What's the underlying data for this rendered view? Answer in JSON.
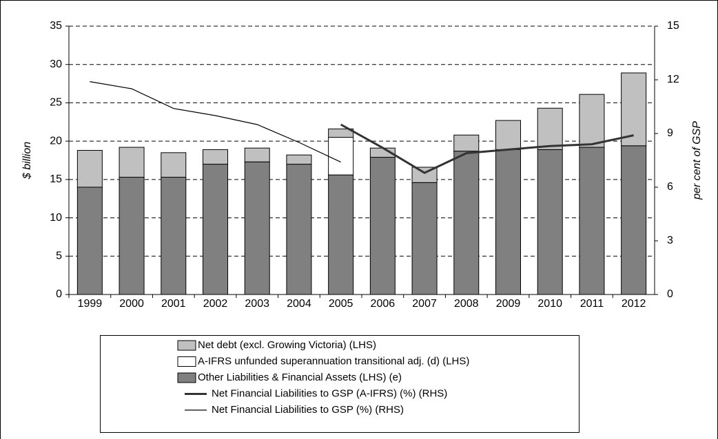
{
  "chart_data": {
    "type": "bar",
    "stacked": true,
    "y_label": "$ billion",
    "y2_label": "per cent of GSP",
    "categories": [
      "1999",
      "2000",
      "2001",
      "2002",
      "2003",
      "2004",
      "2005",
      "2006",
      "2007",
      "2008",
      "2009",
      "2010",
      "2011",
      "2012"
    ],
    "series": [
      {
        "name": "Net debt (excl. Growing Victoria) (LHS)",
        "color": "#c0c0c0",
        "values": [
          4.8,
          3.9,
          3.2,
          1.9,
          1.8,
          1.2,
          1.1,
          1.2,
          2.0,
          2.1,
          3.8,
          5.4,
          6.9,
          9.5
        ]
      },
      {
        "name": "A-IFRS unfunded superannuation transitional adj. (d) (LHS)",
        "color": "#ffffff",
        "values": [
          null,
          null,
          null,
          null,
          null,
          null,
          4.9,
          null,
          null,
          null,
          null,
          null,
          null,
          null
        ]
      },
      {
        "name": "Other Liabilities & Financial Assets (LHS) (e)",
        "color": "#808080",
        "values": [
          14.0,
          15.3,
          15.3,
          17.0,
          17.3,
          17.0,
          15.6,
          17.9,
          14.6,
          18.7,
          18.9,
          18.9,
          19.2,
          19.4
        ]
      },
      {
        "name": "Net Financial Liabilities to GSP (A-IFRS) (%) (RHS)",
        "type": "line",
        "axis": "y2",
        "color": "#333333",
        "width": 3,
        "values": [
          null,
          null,
          null,
          null,
          null,
          null,
          9.5,
          8.2,
          6.8,
          7.9,
          8.1,
          8.3,
          8.4,
          8.9
        ]
      },
      {
        "name": "Net Financial Liabilities to GSP (%) (RHS)",
        "type": "line",
        "axis": "y2",
        "color": "#000000",
        "width": 1.2,
        "values": [
          11.9,
          11.5,
          10.4,
          10.0,
          9.5,
          8.5,
          7.4,
          null,
          null,
          null,
          null,
          null,
          null,
          null
        ]
      }
    ],
    "stack_order": [
      2,
      1,
      0
    ],
    "ylim": [
      0,
      35
    ],
    "yticks": [
      0,
      5,
      10,
      15,
      20,
      25,
      30,
      35
    ],
    "y2lim": [
      0,
      15
    ],
    "y2ticks": [
      0,
      3,
      6,
      9,
      12,
      15
    ],
    "grid": true
  }
}
